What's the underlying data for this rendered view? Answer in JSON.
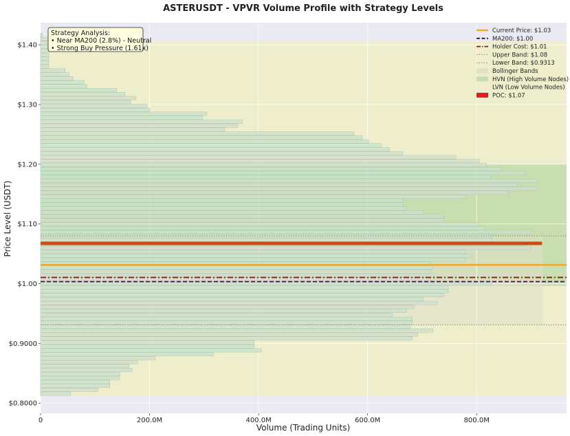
{
  "chart_data": {
    "type": "bar",
    "orientation": "horizontal",
    "title": "ASTERUSDT - VPVR Volume Profile with Strategy Levels",
    "xlabel": "Volume (Trading Units)",
    "ylabel": "Price Level (USDT)",
    "xlim": [
      0,
      965
    ],
    "ylim": [
      0.783,
      1.437
    ],
    "x_unit": "M",
    "x_ticks": [
      {
        "value": 0,
        "label": "0"
      },
      {
        "value": 200,
        "label": "200.0M"
      },
      {
        "value": 400,
        "label": "400.0M"
      },
      {
        "value": 600,
        "label": "600.0M"
      },
      {
        "value": 800,
        "label": "800.0M"
      }
    ],
    "y_ticks": [
      {
        "value": 0.8,
        "label": "$0.8000"
      },
      {
        "value": 0.9,
        "label": "$0.9000"
      },
      {
        "value": 1.0,
        "label": "$1.00"
      },
      {
        "value": 1.1,
        "label": "$1.10"
      },
      {
        "value": 1.2,
        "label": "$1.20"
      },
      {
        "value": 1.3,
        "label": "$1.30"
      },
      {
        "value": 1.4,
        "label": "$1.40"
      }
    ],
    "grid": true,
    "bin_start": 0.8125,
    "bin_step": 0.0066,
    "volumes": [
      55,
      105,
      127,
      127,
      145,
      145,
      168,
      162,
      178,
      210,
      317,
      405,
      392,
      392,
      682,
      692,
      720,
      678,
      682,
      682,
      645,
      672,
      685,
      728,
      702,
      740,
      748,
      748,
      828,
      715,
      723,
      715,
      720,
      715,
      780,
      792,
      780,
      900,
      885,
      828,
      828,
      900,
      815,
      805,
      740,
      740,
      702,
      672,
      665,
      665,
      780,
      858,
      912,
      875,
      912,
      825,
      890,
      845,
      818,
      805,
      762,
      665,
      640,
      625,
      602,
      590,
      575,
      338,
      362,
      370,
      297,
      305,
      200,
      195,
      165,
      175,
      155,
      140,
      85,
      80,
      60,
      52,
      45,
      15,
      15,
      15,
      15,
      15,
      15,
      15,
      15,
      3
    ],
    "hvn_range": [
      0.9962,
      1.1999
    ],
    "bands_range": [
      0.8125,
      1.4055
    ],
    "bollinger_shade_range": [
      0.9313,
      1.08
    ],
    "bollinger_shade_xmax": 922,
    "poc_value_volume": 920,
    "levels": {
      "current_price": 1.0315,
      "ma200": 1.0035,
      "holder_cost": 1.0105,
      "upper_band": 1.08,
      "lower_band": 0.9313,
      "poc": 1.0675
    },
    "legend": [
      {
        "key": "current",
        "label": "Current Price: $1.03"
      },
      {
        "key": "ma200",
        "label": "MA200: $1.00"
      },
      {
        "key": "holder",
        "label": "Holder Cost: $1.01"
      },
      {
        "key": "upper",
        "label": "Upper Band: $1.08"
      },
      {
        "key": "lower",
        "label": "Lower Band: $0.9313"
      },
      {
        "key": "bands",
        "label": "Bollinger Bands"
      },
      {
        "key": "hvn",
        "label": "HVN (High Volume Nodes)"
      },
      {
        "key": "lvn",
        "label": "LVN (Low Volume Nodes)"
      },
      {
        "key": "poc",
        "label": "POC: $1.07"
      }
    ],
    "legend_position": "top-right",
    "annotation": {
      "lines": [
        "Strategy Analysis:",
        "• Near MA200 (2.8%) - Neutral",
        "• Strong Buy Pressure (1.61x)"
      ],
      "position": "top-left"
    }
  },
  "colors": {
    "background": "#eaeaf2",
    "band_fill": "#eeedcc",
    "hvn_fill": "#c9deaf",
    "bollinger_fill": "#e0e0c8",
    "bar_fill": "#cfe3cf",
    "bar_edge": "#a8cdb2",
    "bar_stripe": "#e3c0bf",
    "current_price": "#f5a623",
    "ma200": "#4b0a4e",
    "holder_cost": "#8b1a1a",
    "band_line": "#888870",
    "poc": "#cf4a16",
    "legend_poc": "#e41a1c",
    "annotation_fill": "#ffffe0"
  }
}
